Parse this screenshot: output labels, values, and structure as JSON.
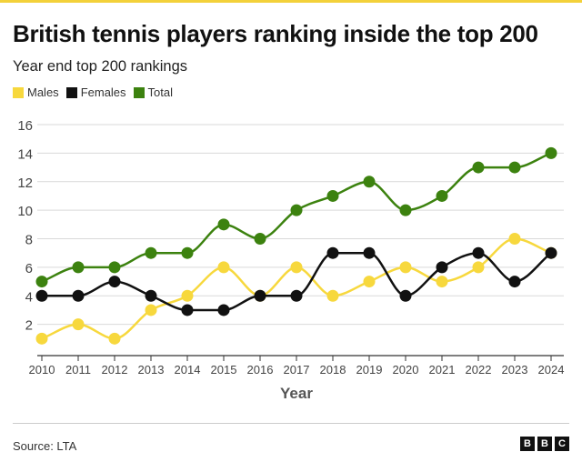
{
  "header": {
    "title": "British tennis players ranking inside the top 200",
    "subtitle": "Year end top 200 rankings"
  },
  "footer": {
    "source": "Source: LTA",
    "logo_letters": [
      "B",
      "B",
      "C"
    ]
  },
  "colors": {
    "males": "#f7d83d",
    "females": "#111111",
    "total": "#3c820f",
    "grid": "#d9d9d9",
    "axis": "#333333"
  },
  "chart_data": {
    "type": "line",
    "xlabel": "Year",
    "ylabel": "",
    "x": [
      2010,
      2011,
      2012,
      2013,
      2014,
      2015,
      2016,
      2017,
      2018,
      2019,
      2020,
      2021,
      2022,
      2023,
      2024
    ],
    "ylim": [
      0,
      16
    ],
    "yticks": [
      2,
      4,
      6,
      8,
      10,
      12,
      14,
      16
    ],
    "grid": true,
    "legend_position": "top-left",
    "series": [
      {
        "name": "Males",
        "color": "#f7d83d",
        "values": [
          1,
          2,
          1,
          3,
          4,
          6,
          4,
          6,
          4,
          5,
          6,
          5,
          6,
          8,
          7
        ]
      },
      {
        "name": "Females",
        "color": "#111111",
        "values": [
          4,
          4,
          5,
          4,
          3,
          3,
          4,
          4,
          7,
          7,
          4,
          6,
          7,
          5,
          7
        ]
      },
      {
        "name": "Total",
        "color": "#3c820f",
        "values": [
          5,
          6,
          6,
          7,
          7,
          9,
          8,
          10,
          11,
          12,
          10,
          11,
          13,
          13,
          14
        ]
      }
    ]
  }
}
